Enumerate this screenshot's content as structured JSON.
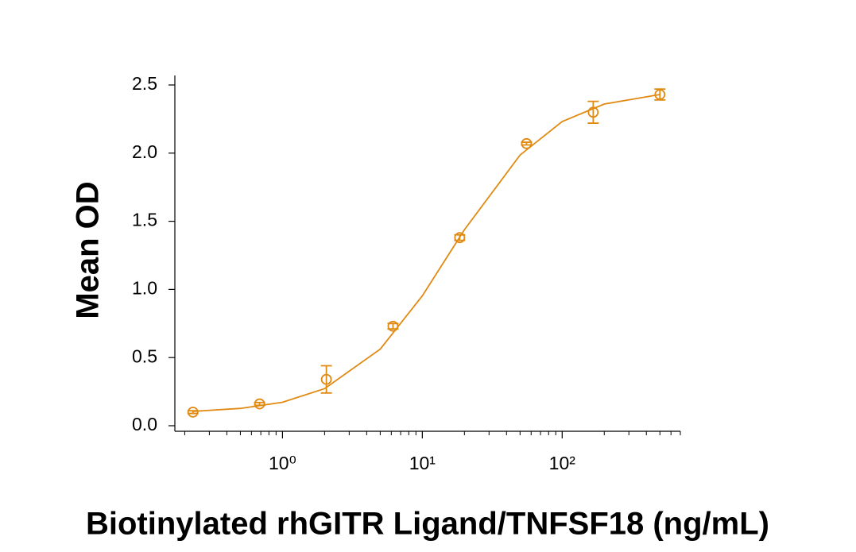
{
  "chart_data": {
    "type": "scatter",
    "x_label": "Biotinylated rhGITR Ligand/TNFSF18 (ng/mL)",
    "y_label": "Mean OD",
    "x_scale": "log",
    "color": "#e08a12",
    "x": [
      0.229,
      0.686,
      2.06,
      6.17,
      18.5,
      55.6,
      166.7,
      500
    ],
    "values": [
      0.1,
      0.16,
      0.34,
      0.73,
      1.38,
      2.07,
      2.3,
      2.43
    ],
    "errors": [
      0.01,
      0.01,
      0.1,
      0.02,
      0.02,
      0.01,
      0.08,
      0.04
    ],
    "fit": {
      "x": [
        0.229,
        0.5,
        1,
        2,
        5,
        10,
        20,
        50,
        100,
        200,
        500
      ],
      "values": [
        0.105,
        0.127,
        0.172,
        0.272,
        0.562,
        0.953,
        1.438,
        1.986,
        2.232,
        2.36,
        2.43
      ]
    },
    "xlim": [
      0.17,
      700
    ],
    "ylim": [
      0,
      2.5
    ],
    "xticks": [
      {
        "value": 1,
        "label": "10⁰"
      },
      {
        "value": 10,
        "label": "10¹"
      },
      {
        "value": 100,
        "label": "10²"
      }
    ],
    "xminorticks": [
      0.2,
      0.3,
      0.4,
      0.5,
      0.6,
      0.7,
      0.8,
      0.9,
      2,
      3,
      4,
      5,
      6,
      7,
      8,
      9,
      20,
      30,
      40,
      50,
      60,
      70,
      80,
      90,
      200,
      300,
      400,
      500,
      600,
      700
    ],
    "yticks": [
      {
        "value": 0,
        "label": "0.0"
      },
      0.5,
      {
        "value": 1,
        "label": "1.0"
      },
      1.5,
      {
        "value": 2,
        "label": "2.0"
      },
      2.5
    ]
  }
}
